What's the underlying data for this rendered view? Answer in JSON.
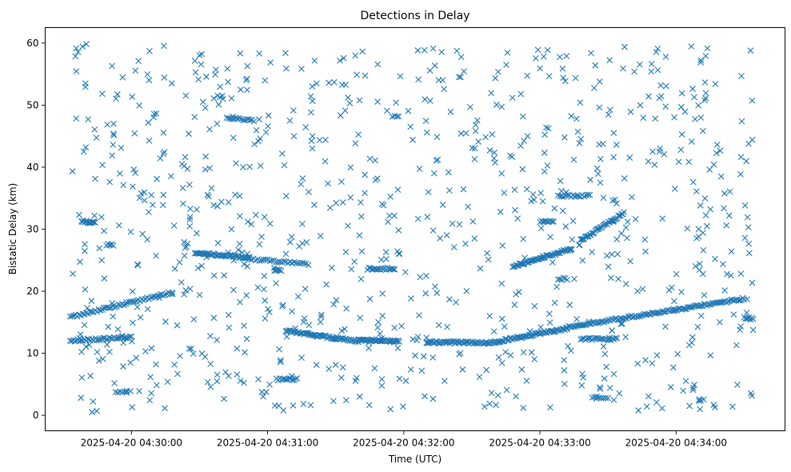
{
  "chart_data": {
    "type": "scatter",
    "title": "Detections in Delay",
    "xlabel": "Time (UTC)",
    "ylabel": "Bistatic Delay (km)",
    "marker": "x",
    "color": "#1f77b4",
    "grid": false,
    "x_type": "datetime",
    "xlim": [
      "2025-04-20 04:29:22",
      "2025-04-20 04:34:48"
    ],
    "ylim": [
      -2.5,
      62.5
    ],
    "x_ticks": [
      "2025-04-20 04:30:00",
      "2025-04-20 04:31:00",
      "2025-04-20 04:32:00",
      "2025-04-20 04:33:00",
      "2025-04-20 04:34:00"
    ],
    "y_ticks": [
      0,
      10,
      20,
      30,
      40,
      50,
      60
    ],
    "tracks": [
      {
        "from": [
          "2025-04-20 04:29:33",
          15.8
        ],
        "to": [
          "2025-04-20 04:30:18",
          19.8
        ],
        "count": 58
      },
      {
        "from": [
          "2025-04-20 04:29:33",
          12.0
        ],
        "to": [
          "2025-04-20 04:30:00",
          12.6
        ],
        "count": 40
      },
      {
        "from": [
          "2025-04-20 04:29:38",
          31.3
        ],
        "to": [
          "2025-04-20 04:29:44",
          31.0
        ],
        "count": 14
      },
      {
        "from": [
          "2025-04-20 04:29:49",
          27.5
        ],
        "to": [
          "2025-04-20 04:29:52",
          27.5
        ],
        "count": 6
      },
      {
        "from": [
          "2025-04-20 04:29:53",
          3.8
        ],
        "to": [
          "2025-04-20 04:29:58",
          3.8
        ],
        "count": 6
      },
      {
        "from": [
          "2025-04-20 04:30:28",
          26.2
        ],
        "to": [
          "2025-04-20 04:30:52",
          25.4
        ],
        "count": 48
      },
      {
        "from": [
          "2025-04-20 04:30:52",
          25.2
        ],
        "to": [
          "2025-04-20 04:31:18",
          24.4
        ],
        "count": 30
      },
      {
        "from": [
          "2025-04-20 04:30:42",
          48.0
        ],
        "to": [
          "2025-04-20 04:30:54",
          47.5
        ],
        "count": 16
      },
      {
        "from": [
          "2025-04-20 04:30:38",
          51.4
        ],
        "to": [
          "2025-04-20 04:30:40",
          51.4
        ],
        "count": 3
      },
      {
        "from": [
          "2025-04-20 04:31:03",
          23.4
        ],
        "to": [
          "2025-04-20 04:31:06",
          23.4
        ],
        "count": 6
      },
      {
        "from": [
          "2025-04-20 04:31:04",
          5.8
        ],
        "to": [
          "2025-04-20 04:31:13",
          5.8
        ],
        "count": 14
      },
      {
        "from": [
          "2025-04-20 04:31:08",
          13.6
        ],
        "to": [
          "2025-04-20 04:31:40",
          11.9
        ],
        "count": 62
      },
      {
        "from": [
          "2025-04-20 04:31:40",
          12.2
        ],
        "to": [
          "2025-04-20 04:31:58",
          11.9
        ],
        "count": 40
      },
      {
        "from": [
          "2025-04-20 04:31:44",
          23.6
        ],
        "to": [
          "2025-04-20 04:31:56",
          23.6
        ],
        "count": 20
      },
      {
        "from": [
          "2025-04-20 04:31:55",
          48.3
        ],
        "to": [
          "2025-04-20 04:31:57",
          48.3
        ],
        "count": 3
      },
      {
        "from": [
          "2025-04-20 04:32:10",
          11.8
        ],
        "to": [
          "2025-04-20 04:32:40",
          11.7
        ],
        "count": 60
      },
      {
        "from": [
          "2025-04-20 04:32:40",
          11.8
        ],
        "to": [
          "2025-04-20 04:33:12",
          14.0
        ],
        "count": 62
      },
      {
        "from": [
          "2025-04-20 04:33:12",
          14.2
        ],
        "to": [
          "2025-04-20 04:34:30",
          18.8
        ],
        "count": 120
      },
      {
        "from": [
          "2025-04-20 04:32:48",
          24.0
        ],
        "to": [
          "2025-04-20 04:33:14",
          26.8
        ],
        "count": 52
      },
      {
        "from": [
          "2025-04-20 04:33:00",
          31.2
        ],
        "to": [
          "2025-04-20 04:33:06",
          31.2
        ],
        "count": 10
      },
      {
        "from": [
          "2025-04-20 04:33:18",
          28.2
        ],
        "to": [
          "2025-04-20 04:33:37",
          32.6
        ],
        "count": 40
      },
      {
        "from": [
          "2025-04-20 04:33:08",
          35.4
        ],
        "to": [
          "2025-04-20 04:33:22",
          35.4
        ],
        "count": 18
      },
      {
        "from": [
          "2025-04-20 04:33:08",
          22.0
        ],
        "to": [
          "2025-04-20 04:33:12",
          22.0
        ],
        "count": 6
      },
      {
        "from": [
          "2025-04-20 04:33:18",
          12.3
        ],
        "to": [
          "2025-04-20 04:33:34",
          12.3
        ],
        "count": 24
      },
      {
        "from": [
          "2025-04-20 04:33:23",
          2.9
        ],
        "to": [
          "2025-04-20 04:33:30",
          2.9
        ],
        "count": 8
      },
      {
        "from": [
          "2025-04-20 04:34:30",
          15.8
        ],
        "to": [
          "2025-04-20 04:34:34",
          15.5
        ],
        "count": 8
      }
    ],
    "background_noise": {
      "x_range": [
        "2025-04-20 04:29:34",
        "2025-04-20 04:34:34"
      ],
      "y_range": [
        0.5,
        59.9
      ],
      "count": 880
    }
  }
}
